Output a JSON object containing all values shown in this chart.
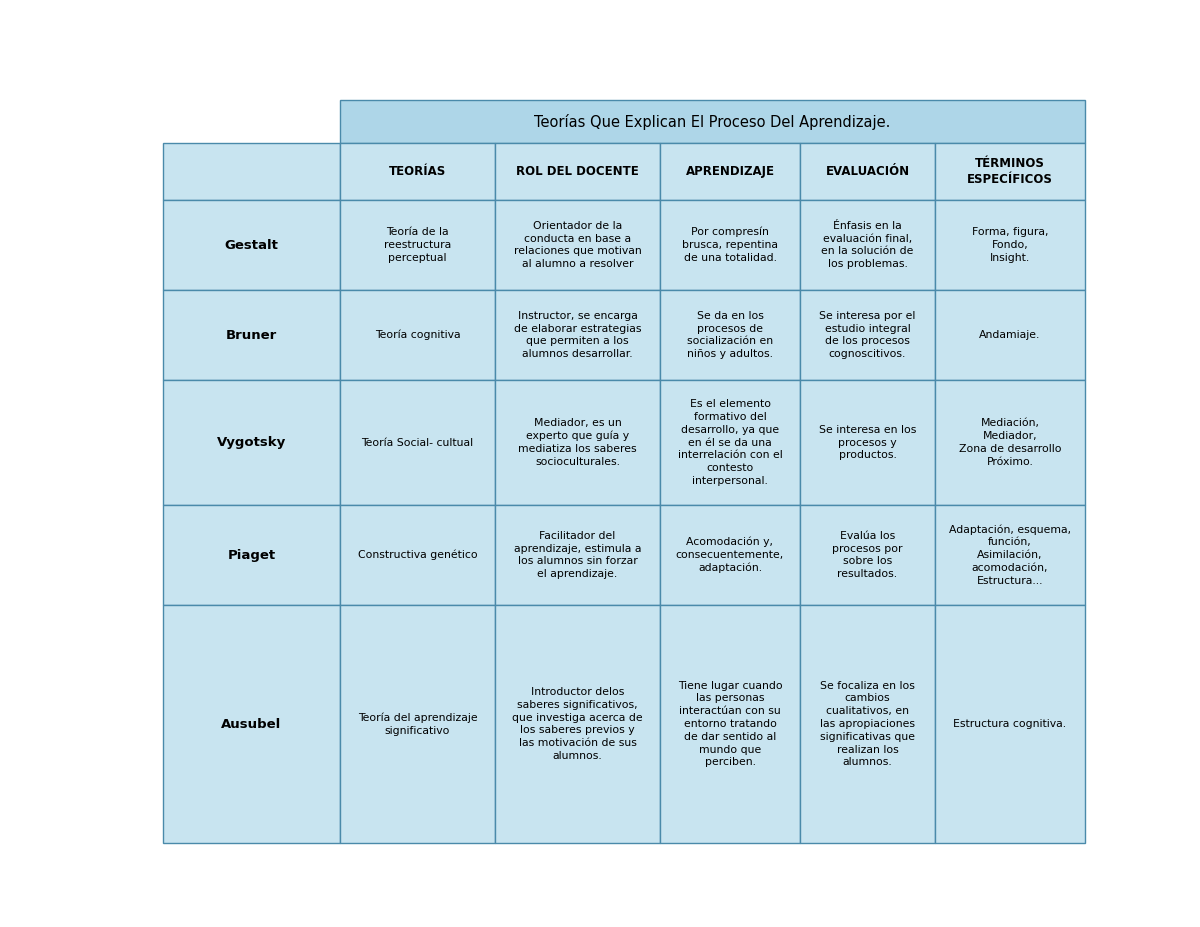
{
  "title": "Teorías Que Explican El Proceso Del Aprendizaje.",
  "title_bg": "#aed6e8",
  "table_bg": "#c8e4f0",
  "border_color": "#4a8aaa",
  "col_headers": [
    "TEORÍAS",
    "ROL DEL DOCENTE",
    "APRENDIZAJE",
    "EVALUACIÓN",
    "TÉRMINOS\nESPECÍFICOS"
  ],
  "row_headers": [
    "Gestalt",
    "Bruner",
    "Vygotsky",
    "Piaget",
    "Ausubel"
  ],
  "cell_data": [
    [
      "Teoría de la\nreestructura\nperceptual",
      "Orientador de la\nconducta en base a\nrelaciones que motivan\nal alumno a resolver",
      "Por compresín\nbrusca, repentina\nde una totalidad.",
      "Énfasis en la\nevaluación final,\nen la solución de\nlos problemas.",
      "Forma, figura,\nFondo,\nInsight."
    ],
    [
      "Teoría cognitiva",
      "Instructor, se encarga\nde elaborar estrategias\nque permiten a los\nalumnos desarrollar.",
      "Se da en los\nprocesos de\nsocialización en\nniños y adultos.",
      "Se interesa por el\nestudio integral\nde los procesos\ncognoscitivos.",
      "Andamiaje."
    ],
    [
      "Teoría Social- cultual",
      "Mediador, es un\nexperto que guía y\nmediatiza los saberes\nsocioculturales.",
      "Es el elemento\nformativo del\ndesarrollo, ya que\nen él se da una\ninterrelación con el\ncontesto\ninterpersonal.",
      "Se interesa en los\nprocesos y\nproductos.",
      "Mediación,\nMediador,\nZona de desarrollo\nPróximo."
    ],
    [
      "Constructiva genético",
      "Facilitador del\naprendizaje, estimula a\nlos alumnos sin forzar\nel aprendizaje.",
      "Acomodación y,\nconsecuentemente,\nadaptación.",
      "Evalúa los\nprocesos por\nsobre los\nresultados.",
      "Adaptación, esquema,\nfunción,\nAsimilación,\nacomodación,\nEstructura..."
    ],
    [
      "Teoría del aprendizaje\nsignificativo",
      "Introductor delos\nsaberes significativos,\nque investiga acerca de\nlos saberes previos y\nlas motivación de sus\nalumnos.",
      "Tiene lugar cuando\nlas personas\ninteractúan con su\nentorno tratando\nde dar sentido al\nmundo que\nperciben.",
      "Se focaliza en los\ncambios\ncualitativos, en\nlas apropiaciones\nsignificativas que\nrealizan los\nalumnos.",
      "Estructura cognitiva."
    ]
  ],
  "figsize": [
    12.0,
    9.27
  ],
  "dpi": 100
}
